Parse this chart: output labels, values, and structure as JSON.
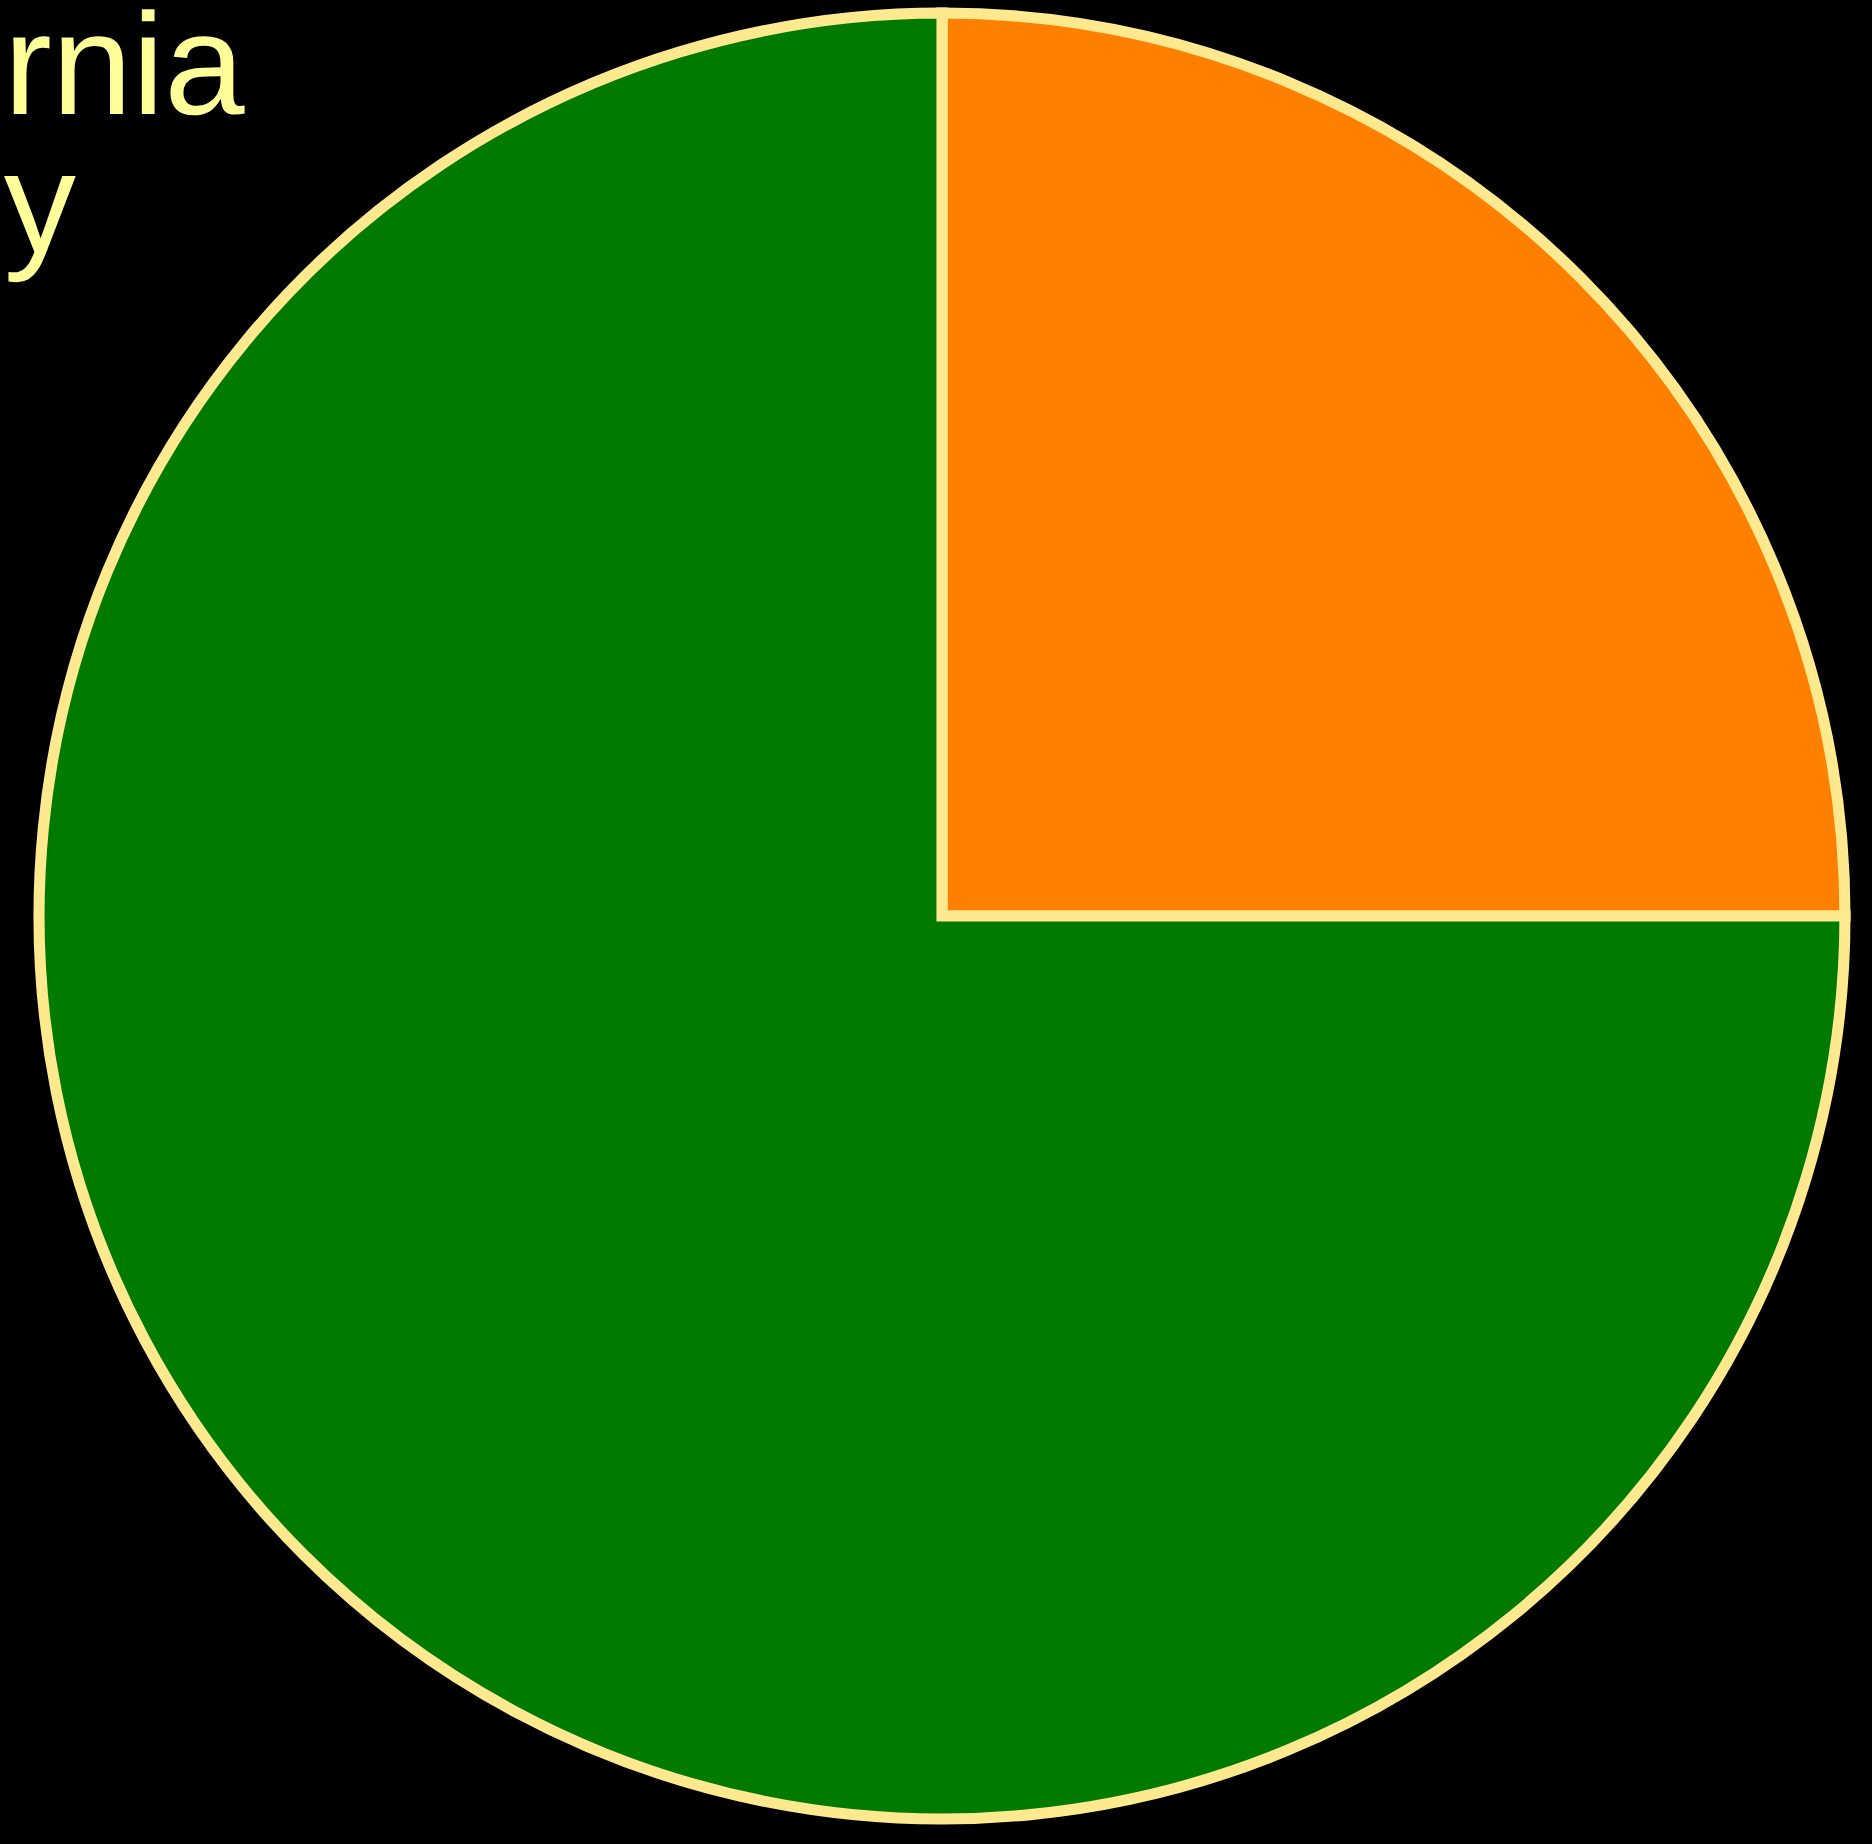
{
  "chart_data": {
    "type": "pie",
    "categories": [
      null,
      null
    ],
    "values": [
      25,
      75
    ],
    "colors": [
      "#ff8000",
      "#007a00"
    ],
    "annotations": [
      "rnia",
      "y"
    ]
  }
}
